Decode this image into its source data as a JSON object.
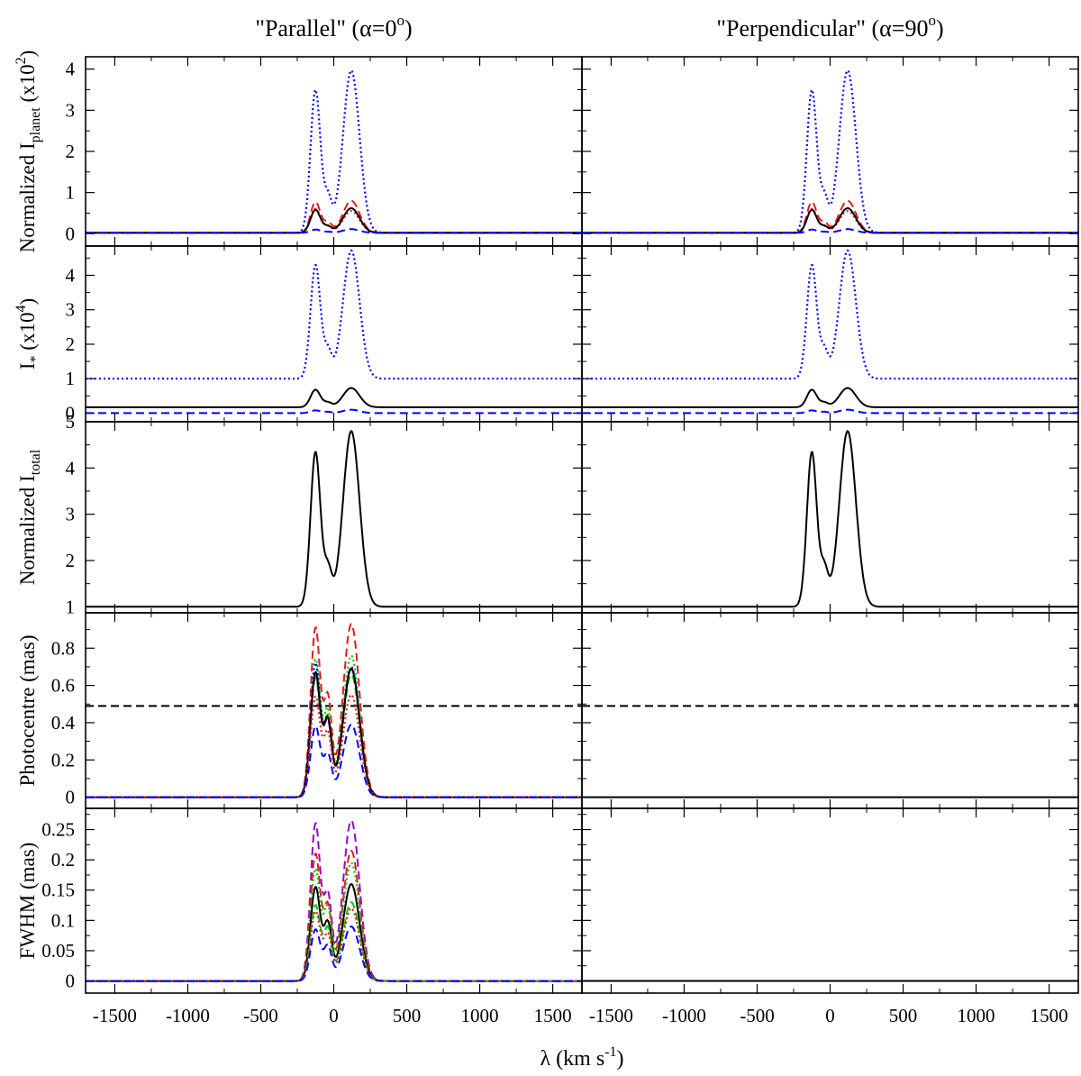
{
  "figure": {
    "col_titles": [
      {
        "pre": "\"Parallel\" (",
        "alpha": "α",
        "eq": "=0",
        "sup": "o",
        "post": ")"
      },
      {
        "pre": "\"Perpendicular\" (",
        "alpha": "α",
        "eq": "=90",
        "sup": "o",
        "post": ")"
      }
    ],
    "xlabel": {
      "pre": "λ (km s",
      "sup": "-1",
      "post": ")"
    },
    "xlim": [
      -1700,
      1700
    ],
    "xticks": [
      -1500,
      -1000,
      -500,
      0,
      500,
      1000,
      1500
    ],
    "xtick_labels": [
      "-1500",
      "-1000",
      "-500",
      "0",
      "500",
      "1000",
      "1500"
    ]
  },
  "colors": {
    "black": "#000000",
    "red": "#e41a1c",
    "blue": "#0000ff",
    "green": "#00cc00",
    "purple": "#9900cc"
  },
  "chart_data": [
    {
      "type": "line",
      "panel": "planet",
      "ylabel": {
        "a": "Normalized I",
        "sub": "planet",
        "b": " (x10",
        "sup": "2",
        "c": ")"
      },
      "ylim": [
        -0.3,
        4.3
      ],
      "yticks": [
        0,
        1,
        2,
        3,
        4
      ],
      "ytick_labels": [
        "0",
        "1",
        "2",
        "3",
        "4"
      ],
      "series": [
        {
          "name": "blue-dotted",
          "color": "blue",
          "dash": "dot",
          "base": 0.02,
          "p1": 3.5,
          "p2": 3.97,
          "min": 1.05
        },
        {
          "name": "red-dashed",
          "color": "red",
          "dash": "dash",
          "base": 0.02,
          "p1": 0.77,
          "p2": 0.8,
          "min": 0.3
        },
        {
          "name": "red-dotted",
          "color": "red",
          "dash": "dot",
          "base": 0.02,
          "p1": 0.6,
          "p2": 0.55,
          "min": 0.2
        },
        {
          "name": "black-solid",
          "color": "black",
          "dash": "solid",
          "base": 0.02,
          "p1": 0.58,
          "p2": 0.62,
          "min": 0.2
        },
        {
          "name": "blue-dashed",
          "color": "blue",
          "dash": "dash",
          "base": 0.02,
          "p1": 0.1,
          "p2": 0.11,
          "min": 0.05
        }
      ]
    },
    {
      "type": "line",
      "panel": "star",
      "ylabel": {
        "a": "I",
        "sub": "*",
        "b": " (x10",
        "sup": "4",
        "c": ")"
      },
      "ylim": [
        -0.25,
        4.85
      ],
      "yticks": [
        0,
        1,
        2,
        3,
        4
      ],
      "ytick_labels": [
        "0",
        "1",
        "2",
        "3",
        "4"
      ],
      "series": [
        {
          "name": "blue-dotted",
          "color": "blue",
          "dash": "dot",
          "base": 1.0,
          "p1": 4.3,
          "p2": 4.72,
          "min": 1.98
        },
        {
          "name": "black-solid",
          "color": "black",
          "dash": "solid",
          "base": 0.17,
          "p1": 0.68,
          "p2": 0.73,
          "min": 0.33
        },
        {
          "name": "blue-dashed",
          "color": "blue",
          "dash": "dash",
          "base": 0.0,
          "p1": 0.08,
          "p2": 0.1,
          "min": 0.04
        }
      ]
    },
    {
      "type": "line",
      "panel": "total",
      "ylabel": {
        "a": "Normalized I",
        "sub": "total",
        "b": "",
        "sup": "",
        "c": ""
      },
      "ylim": [
        0.87,
        5.0
      ],
      "yticks": [
        1,
        2,
        3,
        4,
        5
      ],
      "ytick_labels": [
        "1",
        "2",
        "3",
        "4",
        "5"
      ],
      "series": [
        {
          "name": "black-solid",
          "color": "black",
          "dash": "solid",
          "base": 1.0,
          "p1": 4.35,
          "p2": 4.8,
          "min": 2.0
        }
      ]
    },
    {
      "type": "line",
      "panel": "photocentre",
      "ylabel": {
        "a": "Photocentre (mas)",
        "sub": "",
        "b": "",
        "sup": "",
        "c": ""
      },
      "ylim": [
        -0.06,
        0.99
      ],
      "yticks": [
        0,
        0.2,
        0.4,
        0.6,
        0.8
      ],
      "ytick_labels": [
        "0",
        "0.2",
        "0.4",
        "0.6",
        "0.8"
      ],
      "hline": 0.49,
      "perp_zero": true,
      "series": [
        {
          "name": "red-dashed",
          "color": "red",
          "dash": "dash",
          "base": 0,
          "p1": 0.91,
          "p2": 0.93,
          "min": 0.56
        },
        {
          "name": "green-dotted",
          "color": "green",
          "dash": "dot",
          "base": 0,
          "p1": 0.74,
          "p2": 0.76,
          "min": 0.48
        },
        {
          "name": "green-dashed",
          "color": "green",
          "dash": "dash",
          "base": 0,
          "p1": 0.64,
          "p2": 0.66,
          "min": 0.44
        },
        {
          "name": "blue-dotted",
          "color": "blue",
          "dash": "dot",
          "base": 0,
          "p1": 0.72,
          "p2": 0.7,
          "min": 0.43
        },
        {
          "name": "purple-dashed",
          "color": "purple",
          "dash": "dash",
          "base": 0,
          "p1": 0.66,
          "p2": 0.69,
          "min": 0.42
        },
        {
          "name": "black-solid",
          "color": "black",
          "dash": "solid",
          "base": 0,
          "p1": 0.67,
          "p2": 0.69,
          "min": 0.43
        },
        {
          "name": "red-dotted",
          "color": "red",
          "dash": "dot",
          "base": 0,
          "p1": 0.54,
          "p2": 0.55,
          "min": 0.36
        },
        {
          "name": "blue-dashed",
          "color": "blue",
          "dash": "dash",
          "base": 0,
          "p1": 0.38,
          "p2": 0.39,
          "min": 0.24
        }
      ]
    },
    {
      "type": "line",
      "panel": "fwhm",
      "ylabel": {
        "a": "FWHM (mas)",
        "sub": "",
        "b": "",
        "sup": "",
        "c": ""
      },
      "ylim": [
        -0.02,
        0.285
      ],
      "yticks": [
        0,
        0.05,
        0.1,
        0.15,
        0.2,
        0.25
      ],
      "ytick_labels": [
        "0",
        "0.05",
        "0.1",
        "0.15",
        "0.2",
        "0.25"
      ],
      "perp_zero": true,
      "series": [
        {
          "name": "purple-dashed",
          "color": "purple",
          "dash": "dash",
          "base": 0,
          "p1": 0.26,
          "p2": 0.265,
          "min": 0.15
        },
        {
          "name": "red-dashed",
          "color": "red",
          "dash": "dash",
          "base": 0,
          "p1": 0.21,
          "p2": 0.215,
          "min": 0.13
        },
        {
          "name": "green-dotted",
          "color": "green",
          "dash": "dot",
          "base": 0,
          "p1": 0.185,
          "p2": 0.195,
          "min": 0.125
        },
        {
          "name": "black-solid",
          "color": "black",
          "dash": "solid",
          "base": 0,
          "p1": 0.155,
          "p2": 0.16,
          "min": 0.1
        },
        {
          "name": "green-dashed",
          "color": "green",
          "dash": "dash",
          "base": 0,
          "p1": 0.125,
          "p2": 0.13,
          "min": 0.09
        },
        {
          "name": "red-dotted",
          "color": "red",
          "dash": "dot",
          "base": 0,
          "p1": 0.115,
          "p2": 0.12,
          "min": 0.08
        },
        {
          "name": "blue-dashed",
          "color": "blue",
          "dash": "dash",
          "base": 0,
          "p1": 0.085,
          "p2": 0.09,
          "min": 0.06
        }
      ]
    }
  ]
}
